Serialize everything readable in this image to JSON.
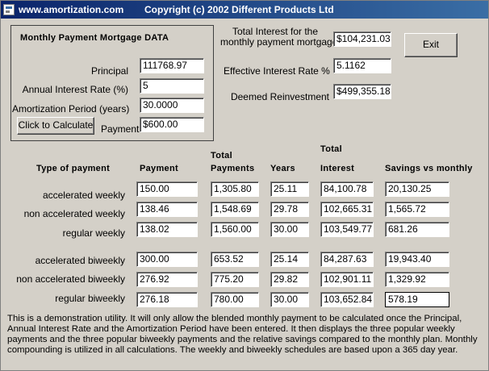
{
  "title_bar": {
    "url": "www.amortization.com",
    "copyright": "Copyright (c) 2002 Different Products Ltd"
  },
  "data_group": {
    "title": "Monthly Payment Mortgage DATA",
    "principal_label": "Principal",
    "principal_value": "111768.97",
    "rate_label": "Annual Interest Rate (%)",
    "rate_value": "5",
    "period_label": "Amortization Period (years)",
    "period_value": "30.0000",
    "calc_button_label": "Click to Calculate",
    "payment_label": "Payment",
    "payment_value": "$600.00"
  },
  "summary": {
    "total_interest_label_line1": "Total Interest for the",
    "total_interest_label_line2": "monthly payment mortgage",
    "total_interest_value": "$104,231.03",
    "effective_rate_label": "Effective Interest Rate %",
    "effective_rate_value": "5.1162",
    "deemed_label": "Deemed Reinvestment",
    "deemed_value": "$499,355.18",
    "exit_label": "Exit"
  },
  "table": {
    "headers": {
      "type": "Type of payment",
      "payment": "Payment",
      "total_payments_line1": "Total",
      "total_payments_line2": "Payments",
      "years": "Years",
      "total_interest_line1": "Total",
      "total_interest_line2": "Interest",
      "savings": "Savings vs monthly"
    },
    "rows": [
      {
        "type": "accelerated weekly",
        "payment": "150.00",
        "total_payments": "1,305.80",
        "years": "25.11",
        "interest": "84,100.78",
        "savings": "20,130.25"
      },
      {
        "type": "non accelerated weekly",
        "payment": "138.46",
        "total_payments": "1,548.69",
        "years": "29.78",
        "interest": "102,665.31",
        "savings": "1,565.72"
      },
      {
        "type": "regular weekly",
        "payment": "138.02",
        "total_payments": "1,560.00",
        "years": "30.00",
        "interest": "103,549.77",
        "savings": "681.26"
      },
      {
        "type": "accelerated biweekly",
        "payment": "300.00",
        "total_payments": "653.52",
        "years": "25.14",
        "interest": "84,287.63",
        "savings": "19,943.40"
      },
      {
        "type": "non accelerated biweekly",
        "payment": "276.92",
        "total_payments": "775.20",
        "years": "29.82",
        "interest": "102,901.11",
        "savings": "1,329.92"
      },
      {
        "type": "regular biweekly",
        "payment": "276.18",
        "total_payments": "780.00",
        "years": "30.00",
        "interest": "103,652.84",
        "savings": "578.19"
      }
    ]
  },
  "description": "This is a demonstration utility. It will only allow the blended monthly payment to be calculated once the Principal, Annual Interest Rate and the Amortization Period have been entered. It then displays the three popular weekly payments and the three popular biweekly payments and the relative savings compared to the monthly plan. Monthly compounding is utilized in all calculations. The weekly and biweekly schedules are based upon a 365 day year."
}
